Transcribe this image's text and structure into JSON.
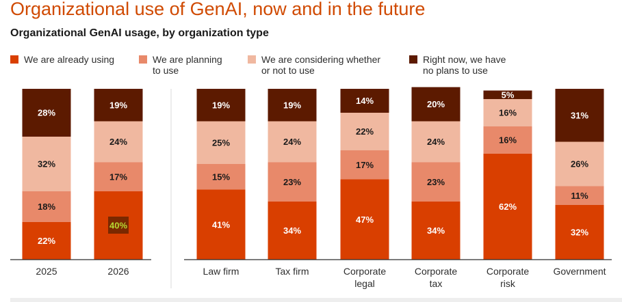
{
  "header": {
    "title": "Organizational use of GenAI, now and in the future",
    "subtitle": "Organizational GenAI usage, by organization type"
  },
  "legend": [
    {
      "label_line1": "We are already using",
      "label_line2": "",
      "color": "#d93f00"
    },
    {
      "label_line1": "We are planning",
      "label_line2": "to use",
      "color": "#e8896a"
    },
    {
      "label_line1": "We are considering whether",
      "label_line2": "or not to use",
      "color": "#f0b8a0"
    },
    {
      "label_line1": "Right now, we have",
      "label_line2": "no plans to use",
      "color": "#5c1a00"
    }
  ],
  "chart_data": {
    "type": "bar",
    "stacked": true,
    "percent_stacked": true,
    "categories": [
      "2025",
      "2026",
      "Law firm",
      "Tax firm",
      "Corporate legal",
      "Corporate tax",
      "Corporate risk",
      "Government"
    ],
    "category_label_lines": [
      [
        "2025"
      ],
      [
        "2026"
      ],
      [
        "Law firm"
      ],
      [
        "Tax firm"
      ],
      [
        "Corporate",
        "legal"
      ],
      [
        "Corporate",
        "tax"
      ],
      [
        "Corporate",
        "risk"
      ],
      [
        "Government"
      ]
    ],
    "series": [
      {
        "name": "We are already using",
        "color": "#d93f00",
        "label_color": "#ffffff",
        "values": [
          22,
          40,
          41,
          34,
          47,
          34,
          62,
          32
        ]
      },
      {
        "name": "We are planning to use",
        "color": "#e8896a",
        "label_color": "#1a1a1a",
        "values": [
          18,
          17,
          15,
          23,
          17,
          23,
          16,
          11
        ]
      },
      {
        "name": "We are considering whether or not to use",
        "color": "#f0b8a0",
        "label_color": "#1a1a1a",
        "values": [
          32,
          24,
          25,
          24,
          22,
          24,
          16,
          26
        ]
      },
      {
        "name": "Right now, we have no plans to use",
        "color": "#5c1a00",
        "label_color": "#ffffff",
        "values": [
          28,
          19,
          19,
          19,
          14,
          20,
          5,
          31
        ]
      }
    ],
    "ylim": [
      0,
      100
    ],
    "highlight": {
      "category_index": 1,
      "series_index": 0,
      "box_color": "#7a2800",
      "text_color": "#b7d832"
    },
    "divider_after_index": 1
  }
}
